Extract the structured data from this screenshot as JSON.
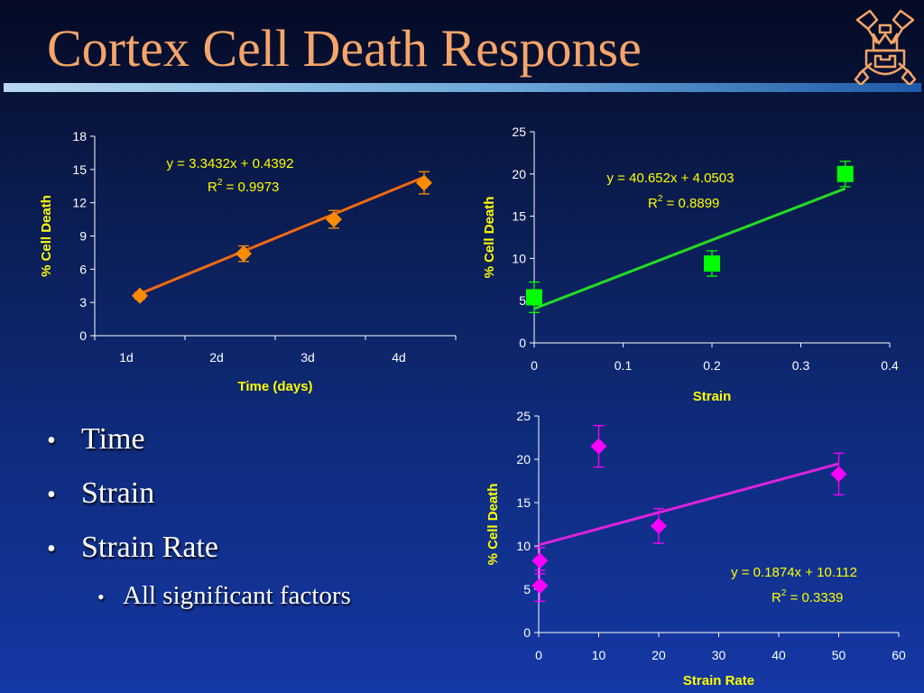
{
  "slide": {
    "title": "Cortex Cell Death Response"
  },
  "bullets": [
    {
      "text": "Time",
      "level": 1
    },
    {
      "text": "Strain",
      "level": 1
    },
    {
      "text": "Strain Rate",
      "level": 1
    },
    {
      "text": "All significant factors",
      "level": 2
    }
  ],
  "chart_data": [
    {
      "type": "scatter",
      "xlabel": "Time (days)",
      "ylabel": "% Cell Death",
      "categories": [
        "1d",
        "2d",
        "3d",
        "4d"
      ],
      "ylim": [
        0,
        18
      ],
      "yticks": [
        0,
        3,
        6,
        9,
        12,
        15,
        18
      ],
      "marker": "diamond",
      "color": "#ff8c00",
      "line_color": "#f06a10",
      "points": [
        {
          "x": 1,
          "y": 3.6,
          "err": 0.3
        },
        {
          "x": 2.15,
          "y": 7.4,
          "err": 0.7
        },
        {
          "x": 3.15,
          "y": 10.5,
          "err": 0.8
        },
        {
          "x": 4.15,
          "y": 13.8,
          "err": 1.0
        }
      ],
      "trendline": {
        "slope": 3.3432,
        "intercept": 0.4392,
        "x_range": [
          1,
          4.15
        ]
      },
      "equation": "y = 3.3432x + 0.4392",
      "r2_prefix": "R",
      "r2_exp": "2",
      "r2_value": " = 0.9973"
    },
    {
      "type": "scatter",
      "xlabel": "Strain",
      "ylabel": "% Cell Death",
      "xlim": [
        0,
        0.4
      ],
      "xticks": [
        "0",
        "0.1",
        "0.2",
        "0.3",
        "0.4"
      ],
      "ylim": [
        0,
        25
      ],
      "yticks": [
        0,
        5,
        10,
        15,
        20,
        25
      ],
      "marker": "square",
      "color": "#00ff00",
      "line_color": "#22dd22",
      "points": [
        {
          "x": 0,
          "y": 5.4,
          "err": 1.8
        },
        {
          "x": 0.2,
          "y": 9.4,
          "err": 1.5
        },
        {
          "x": 0.35,
          "y": 20.0,
          "err": 1.5
        }
      ],
      "trendline": {
        "slope": 40.652,
        "intercept": 4.0503,
        "x_range": [
          0,
          0.35
        ]
      },
      "equation": "y = 40.652x + 4.0503",
      "r2_prefix": "R",
      "r2_exp": "2",
      "r2_value": " = 0.8899"
    },
    {
      "type": "scatter",
      "xlabel": "Strain Rate",
      "ylabel": "% Cell Death",
      "xlim": [
        0,
        60
      ],
      "xticks": [
        "0",
        "10",
        "20",
        "30",
        "40",
        "50",
        "60"
      ],
      "ylim": [
        0,
        25
      ],
      "yticks": [
        0,
        5,
        10,
        15,
        20,
        25
      ],
      "marker": "diamond",
      "color": "#ff00ff",
      "line_color": "#dd22dd",
      "points": [
        {
          "x": 0.2,
          "y": 5.4,
          "err": 1.8
        },
        {
          "x": 0.2,
          "y": 8.3,
          "err": 1.5
        },
        {
          "x": 10,
          "y": 21.5,
          "err": 2.4
        },
        {
          "x": 20,
          "y": 12.3,
          "err": 2.0
        },
        {
          "x": 50,
          "y": 18.3,
          "err": 2.4
        }
      ],
      "trendline": {
        "slope": 0.1874,
        "intercept": 10.112,
        "x_range": [
          0,
          50
        ]
      },
      "equation": "y = 0.1874x + 10.112",
      "r2_prefix": "R",
      "r2_exp": "2",
      "r2_value": " = 0.3339"
    }
  ]
}
